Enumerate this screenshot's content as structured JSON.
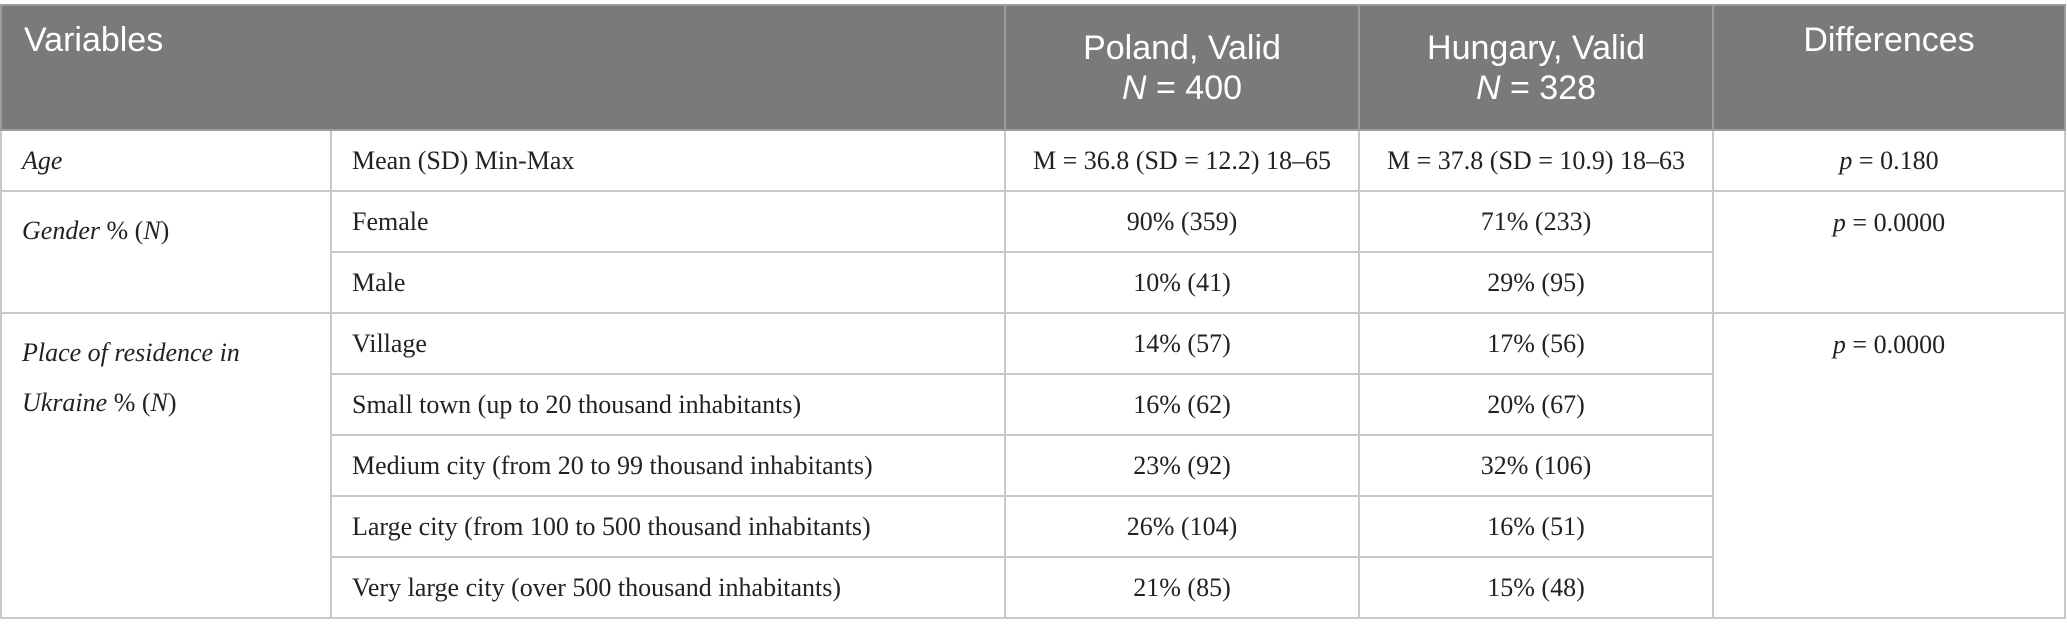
{
  "header": {
    "variables": "Variables",
    "poland_line1": "Poland, Valid",
    "poland_n_symbol": "N",
    "poland_n_value": " = 400",
    "hungary_line1": "Hungary, Valid",
    "hungary_n_symbol": "N",
    "hungary_n_value": " = 328",
    "differences": "Differences"
  },
  "age": {
    "variable": "Age",
    "label": "Mean (SD) Min-Max",
    "poland": "M = 36.8 (SD = 12.2) 18–65",
    "hungary": "M = 37.8 (SD = 10.9) 18–63",
    "diff_p": "p",
    "diff_value": " = 0.180"
  },
  "gender": {
    "variable_part1": "Gender",
    "variable_part2": " % (",
    "variable_part3": "N",
    "variable_part4": ")",
    "diff_p": "p",
    "diff_value": " = 0.0000",
    "rows": [
      {
        "label": "Female",
        "poland": "90% (359)",
        "hungary": "71% (233)"
      },
      {
        "label": "Male",
        "poland": "10% (41)",
        "hungary": "29% (95)"
      }
    ]
  },
  "residence": {
    "variable_part1": "Place of residence in Ukraine",
    "variable_part2": " % (",
    "variable_part3": "N",
    "variable_part4": ")",
    "diff_p": "p",
    "diff_value": " = 0.0000",
    "rows": [
      {
        "label": "Village",
        "poland": "14% (57)",
        "hungary": "17% (56)"
      },
      {
        "label": "Small town (up to 20 thousand inhabitants)",
        "poland": "16% (62)",
        "hungary": "20% (67)"
      },
      {
        "label": "Medium city (from 20 to 99 thousand inhabitants)",
        "poland": "23% (92)",
        "hungary": "32% (106)"
      },
      {
        "label": "Large city (from 100 to 500 thousand inhabitants)",
        "poland": "26% (104)",
        "hungary": "16% (51)"
      },
      {
        "label": "Very large city (over 500 thousand inhabitants)",
        "poland": "21% (85)",
        "hungary": "15% (48)"
      }
    ]
  }
}
